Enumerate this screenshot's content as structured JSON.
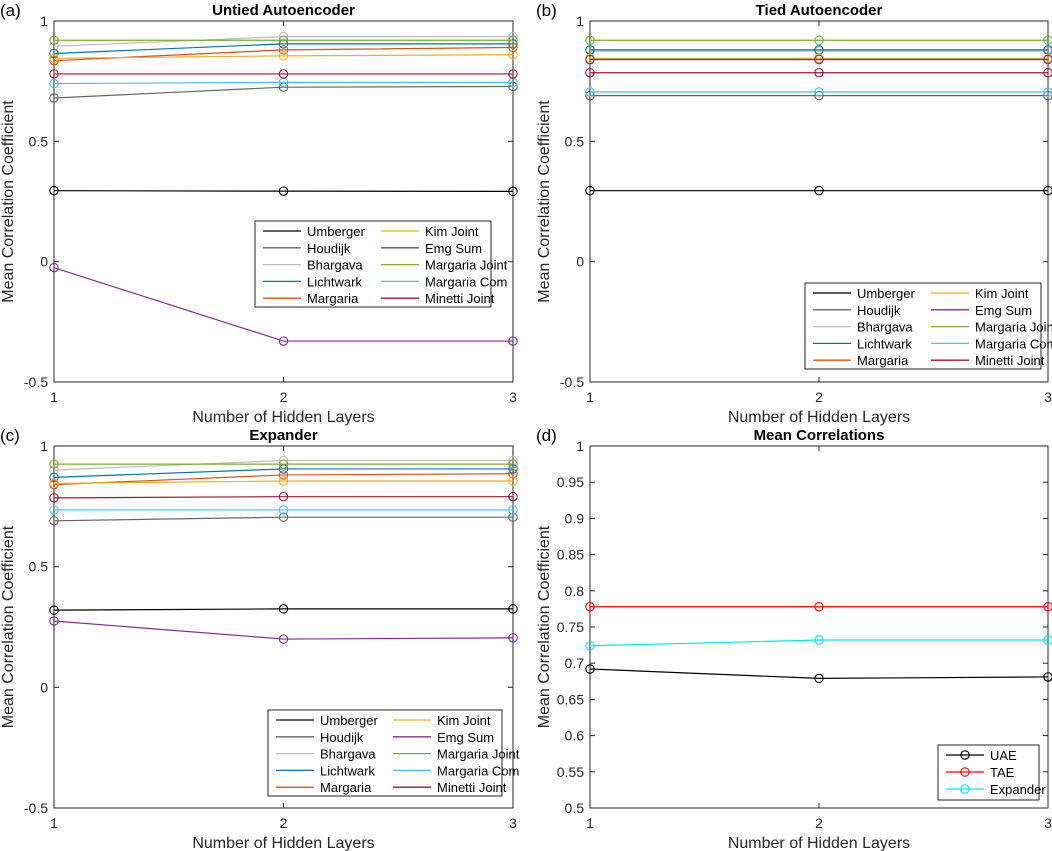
{
  "figure": {
    "panels": [
      {
        "tag": "(a)"
      },
      {
        "tag": "(b)"
      },
      {
        "tag": "(c)"
      },
      {
        "tag": "(d)"
      }
    ]
  },
  "chart_data": [
    {
      "type": "line",
      "panel_label": "(a)",
      "title": "Untied Autoencoder",
      "xlabel": "Number of Hidden Layers",
      "ylabel": "Mean Correlation Coefficient",
      "x": [
        1,
        2,
        3
      ],
      "xlim": [
        1,
        3
      ],
      "ylim": [
        -0.5,
        1
      ],
      "xticks": [
        1,
        2,
        3
      ],
      "yticks": [
        -0.5,
        0,
        0.5,
        1
      ],
      "grid": false,
      "legend_position": "center-right",
      "legend_columns": 2,
      "series": [
        {
          "name": "Umberger",
          "color": "#000000",
          "values": [
            0.295,
            0.293,
            0.292
          ]
        },
        {
          "name": "Houdijk",
          "color": "#666666",
          "values": [
            0.68,
            0.725,
            0.728
          ]
        },
        {
          "name": "Bhargava",
          "color": "#bdbdbd",
          "values": [
            0.895,
            0.935,
            0.935
          ]
        },
        {
          "name": "Lichtwark",
          "color": "#0072bd",
          "values": [
            0.865,
            0.905,
            0.905
          ]
        },
        {
          "name": "Margaria",
          "color": "#d95319",
          "values": [
            0.835,
            0.88,
            0.89
          ]
        },
        {
          "name": "Kim Joint",
          "color": "#edb120",
          "values": [
            0.845,
            0.855,
            0.86
          ]
        },
        {
          "name": "Emg Sum",
          "color": "#7e2f8e",
          "values": [
            -0.025,
            -0.33,
            -0.33
          ]
        },
        {
          "name": "Margaria Joint",
          "color": "#77ac30",
          "values": [
            0.92,
            0.92,
            0.92
          ]
        },
        {
          "name": "Margaria Com",
          "color": "#4dbeee",
          "values": [
            0.74,
            0.745,
            0.745
          ]
        },
        {
          "name": "Minetti Joint",
          "color": "#a2142f",
          "values": [
            0.78,
            0.78,
            0.78
          ]
        }
      ]
    },
    {
      "type": "line",
      "panel_label": "(b)",
      "title": "Tied Autoencoder",
      "xlabel": "Number of Hidden Layers",
      "ylabel": "Mean Correlation Coefficient",
      "x": [
        1,
        2,
        3
      ],
      "xlim": [
        1,
        3
      ],
      "ylim": [
        -0.5,
        1
      ],
      "xticks": [
        1,
        2,
        3
      ],
      "yticks": [
        -0.5,
        0,
        0.5,
        1
      ],
      "grid": false,
      "legend_position": "bottom-right",
      "legend_columns": 2,
      "series": [
        {
          "name": "Umberger",
          "color": "#000000",
          "values": [
            0.295,
            0.295,
            0.295
          ]
        },
        {
          "name": "Houdijk",
          "color": "#666666",
          "values": [
            0.69,
            0.69,
            0.69
          ]
        },
        {
          "name": "Bhargava",
          "color": "#bdbdbd",
          "values": [
            0.875,
            0.875,
            0.875
          ]
        },
        {
          "name": "Lichtwark",
          "color": "#0072bd",
          "values": [
            0.88,
            0.88,
            0.88
          ]
        },
        {
          "name": "Margaria",
          "color": "#d95319",
          "values": [
            0.84,
            0.84,
            0.84
          ]
        },
        {
          "name": "Kim Joint",
          "color": "#edb120",
          "values": [
            0.845,
            0.845,
            0.845
          ]
        },
        {
          "name": "Emg Sum",
          "color": "#7e2f8e",
          "values": [
            0.84,
            0.84,
            0.84
          ]
        },
        {
          "name": "Margaria Joint",
          "color": "#77ac30",
          "values": [
            0.92,
            0.92,
            0.92
          ]
        },
        {
          "name": "Margaria Com",
          "color": "#4dbeee",
          "values": [
            0.705,
            0.705,
            0.705
          ]
        },
        {
          "name": "Minetti Joint",
          "color": "#a2142f",
          "values": [
            0.785,
            0.785,
            0.785
          ]
        }
      ]
    },
    {
      "type": "line",
      "panel_label": "(c)",
      "title": "Expander",
      "xlabel": "Number of Hidden Layers",
      "ylabel": "Mean Correlation Coefficient",
      "x": [
        1,
        2,
        3
      ],
      "xlim": [
        1,
        3
      ],
      "ylim": [
        -0.5,
        1
      ],
      "xticks": [
        1,
        2,
        3
      ],
      "yticks": [
        -0.5,
        0,
        0.5,
        1
      ],
      "grid": false,
      "legend_position": "bottom-right",
      "legend_columns": 2,
      "series": [
        {
          "name": "Umberger",
          "color": "#000000",
          "values": [
            0.32,
            0.325,
            0.325
          ]
        },
        {
          "name": "Houdijk",
          "color": "#666666",
          "values": [
            0.69,
            0.705,
            0.705
          ]
        },
        {
          "name": "Bhargava",
          "color": "#bdbdbd",
          "values": [
            0.9,
            0.94,
            0.94
          ]
        },
        {
          "name": "Lichtwark",
          "color": "#0072bd",
          "values": [
            0.87,
            0.905,
            0.905
          ]
        },
        {
          "name": "Margaria",
          "color": "#d95319",
          "values": [
            0.84,
            0.88,
            0.885
          ]
        },
        {
          "name": "Kim Joint",
          "color": "#edb120",
          "values": [
            0.845,
            0.855,
            0.855
          ]
        },
        {
          "name": "Emg Sum",
          "color": "#7e2f8e",
          "values": [
            0.275,
            0.2,
            0.205
          ]
        },
        {
          "name": "Margaria Joint",
          "color": "#77ac30",
          "values": [
            0.925,
            0.925,
            0.925
          ]
        },
        {
          "name": "Margaria Com",
          "color": "#4dbeee",
          "values": [
            0.735,
            0.735,
            0.735
          ]
        },
        {
          "name": "Minetti Joint",
          "color": "#a2142f",
          "values": [
            0.785,
            0.79,
            0.79
          ]
        }
      ]
    },
    {
      "type": "line",
      "panel_label": "(d)",
      "title": "Mean Correlations",
      "xlabel": "Number of Hidden Layers",
      "ylabel": "Mean Correlation Coefficient",
      "x": [
        1,
        2,
        3
      ],
      "xlim": [
        1,
        3
      ],
      "ylim": [
        0.5,
        1
      ],
      "xticks": [
        1,
        2,
        3
      ],
      "yticks": [
        0.5,
        0.55,
        0.6,
        0.65,
        0.7,
        0.75,
        0.8,
        0.85,
        0.9,
        0.95,
        1
      ],
      "grid": false,
      "legend_position": "bottom-right",
      "legend_columns": 1,
      "series": [
        {
          "name": "UAE",
          "color": "#000000",
          "values": [
            0.692,
            0.679,
            0.681
          ]
        },
        {
          "name": "TAE",
          "color": "#ff0000",
          "values": [
            0.778,
            0.778,
            0.778
          ]
        },
        {
          "name": "Expander",
          "color": "#00e5ee",
          "values": [
            0.724,
            0.732,
            0.732
          ]
        }
      ]
    }
  ]
}
